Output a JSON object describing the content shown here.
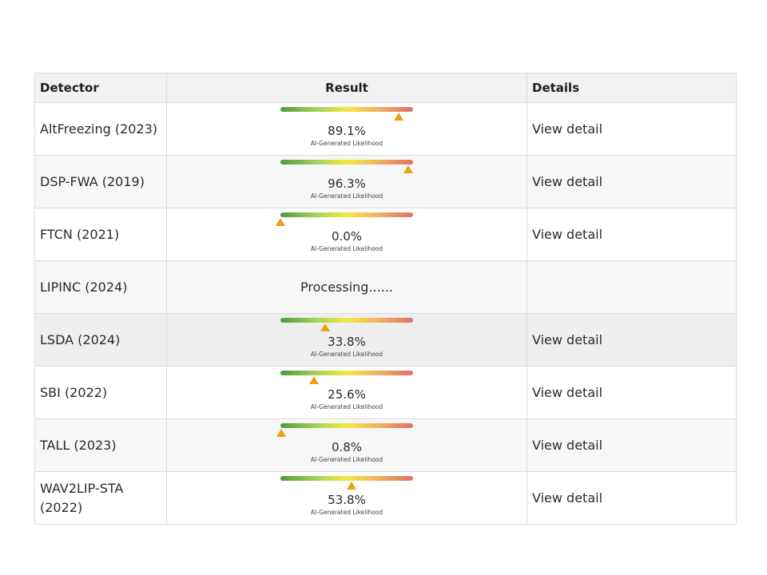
{
  "table": {
    "headers": {
      "detector": "Detector",
      "result": "Result",
      "details": "Details"
    },
    "rows": [
      {
        "name_line1": "AltFreezing (2023)",
        "name_line2": "",
        "percent": "89.1%",
        "value": 89.1,
        "caption": "AI-Generated Likelihood",
        "detail": "View detail"
      },
      {
        "name_line1": "DSP-FWA (2019)",
        "name_line2": "",
        "percent": "96.3%",
        "value": 96.3,
        "caption": "AI-Generated Likelihood",
        "detail": "View detail"
      },
      {
        "name_line1": "FTCN (2021)",
        "name_line2": "",
        "percent": "0.0%",
        "value": 0.0,
        "caption": "AI-Generated Likelihood",
        "detail": "View detail"
      },
      {
        "name_line1": "LIPINC (2024)",
        "name_line2": "",
        "status": "Processing......",
        "detail": ""
      },
      {
        "name_line1": "LSDA (2024)",
        "name_line2": "",
        "percent": "33.8%",
        "value": 33.8,
        "caption": "AI-Generated Likelihood",
        "detail": "View detail"
      },
      {
        "name_line1": "SBI (2022)",
        "name_line2": "",
        "percent": "25.6%",
        "value": 25.6,
        "caption": "AI-Generated Likelihood",
        "detail": "View detail"
      },
      {
        "name_line1": "TALL (2023)",
        "name_line2": "",
        "percent": "0.8%",
        "value": 0.8,
        "caption": "AI-Generated Likelihood",
        "detail": "View detail"
      },
      {
        "name_line1": "WAV2LIP-STA",
        "name_line2": "(2022)",
        "percent": "53.8%",
        "value": 53.8,
        "caption": "AI-Generated Likelihood",
        "detail": "View detail"
      }
    ]
  },
  "colors": {
    "marker": "#f0a00c",
    "gradient_start": "#4e9a3e",
    "gradient_mid": "#f2e844",
    "gradient_end": "#e0706a"
  }
}
